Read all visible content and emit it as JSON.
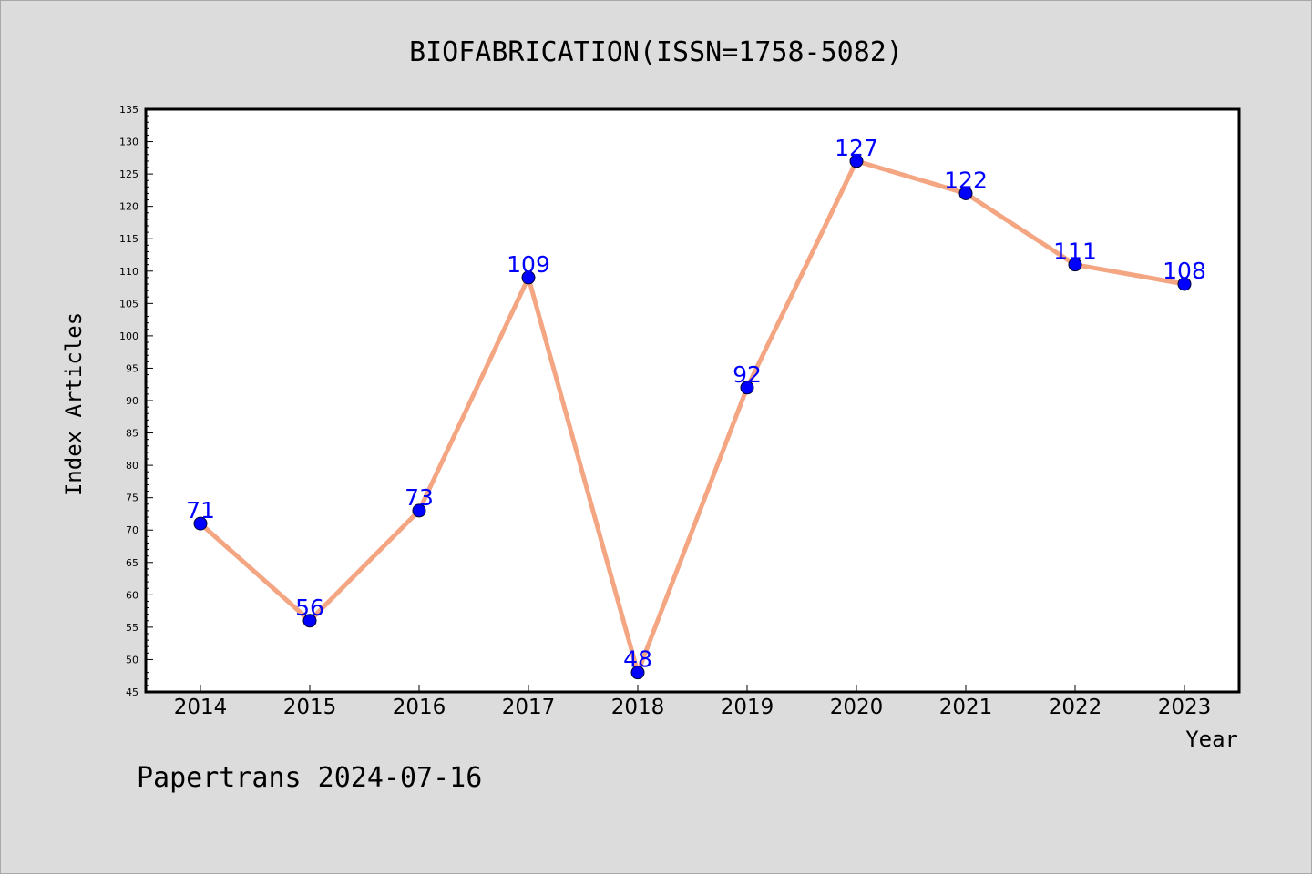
{
  "chart_data": {
    "type": "line",
    "title": "BIOFABRICATION(ISSN=1758-5082)",
    "xlabel": "Year",
    "ylabel": "Index Articles",
    "categories": [
      "2014",
      "2015",
      "2016",
      "2017",
      "2018",
      "2019",
      "2020",
      "2021",
      "2022",
      "2023"
    ],
    "series": [
      {
        "values": [
          71,
          56,
          73,
          109,
          48,
          92,
          127,
          122,
          111,
          108
        ]
      }
    ],
    "ylim": [
      45,
      135
    ],
    "ytick_step": 5,
    "grid": false,
    "data_labels": true,
    "colors": {
      "line": "#f4a582",
      "marker": "#0000ff",
      "label": "#0000ff",
      "background": "#dcdcdc",
      "plot_background": "#ffffff"
    }
  },
  "footer": "Papertrans 2024-07-16"
}
